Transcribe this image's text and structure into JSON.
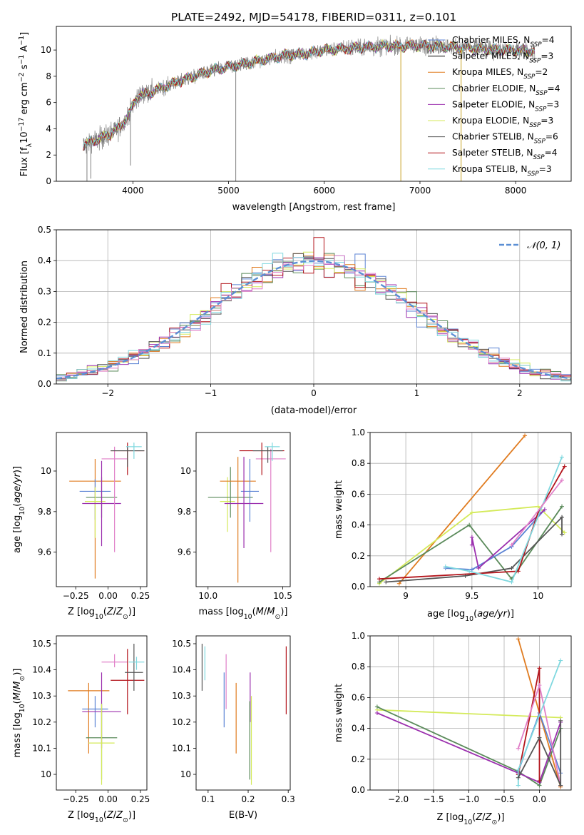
{
  "title": "PLATE=2492, MJD=54178, FIBERID=0311, z=0.101",
  "colors": {
    "chabrier_miles": "#5b83d4",
    "salpeter_miles": "#000000",
    "kroupa_miles": "#e07b1f",
    "chabrier_elodie": "#5a8a5a",
    "salpeter_elodie": "#9b2fae",
    "kroupa_elodie": "#d4ea5a",
    "chabrier_stelib": "#555555",
    "salpeter_stelib": "#b3151c",
    "kroupa_stelib": "#7fd8df",
    "normal_curve": "#5b8fd4",
    "grid": "#b0b0b0",
    "pink": "#e07fc8"
  },
  "chart_data": [
    {
      "id": "spectrum",
      "type": "line",
      "xlabel": "wavelength [Angstrom, rest frame]",
      "ylabel": "Flux [f_λ10^-17 erg cm^-2 s^-1 A^-1]",
      "xlim": [
        3200,
        8580
      ],
      "ylim": [
        0,
        11.8
      ],
      "xticks": [
        4000,
        5000,
        6000,
        7000,
        8000
      ],
      "yticks": [
        0,
        2,
        4,
        6,
        8,
        10
      ],
      "grid": false,
      "legend_position": "top-right",
      "legend": [
        {
          "label": "Chabrier MILES, N_SSP=4",
          "color_key": "chabrier_miles"
        },
        {
          "label": "Salpeter MILES, N_SSP=3",
          "color_key": "salpeter_miles"
        },
        {
          "label": "Kroupa MILES, N_SSP=2",
          "color_key": "kroupa_miles"
        },
        {
          "label": "Chabrier ELODIE, N_SSP=4",
          "color_key": "chabrier_elodie"
        },
        {
          "label": "Salpeter ELODIE, N_SSP=3",
          "color_key": "salpeter_elodie"
        },
        {
          "label": "Kroupa ELODIE, N_SSP=3",
          "color_key": "kroupa_elodie"
        },
        {
          "label": "Chabrier STELIB, N_SSP=6",
          "color_key": "chabrier_stelib"
        },
        {
          "label": "Salpeter STELIB, N_SSP=4",
          "color_key": "salpeter_stelib"
        },
        {
          "label": "Kroupa STELIB, N_SSP=3",
          "color_key": "kroupa_stelib"
        }
      ],
      "continuum": {
        "x": [
          3470,
          3700,
          3850,
          3950,
          4050,
          4200,
          4400,
          4600,
          4800,
          5000,
          5200,
          5400,
          5600,
          5800,
          6000,
          6200,
          6400,
          6600,
          6800,
          7000,
          7200,
          7400,
          7600,
          7800,
          8000,
          8200
        ],
        "y": [
          2.7,
          3.4,
          4.0,
          5.0,
          6.5,
          6.8,
          7.4,
          7.9,
          8.4,
          8.7,
          9.0,
          9.3,
          9.6,
          9.7,
          10.0,
          10.1,
          10.2,
          10.3,
          10.3,
          10.35,
          10.3,
          10.2,
          10.1,
          10.0,
          10.0,
          9.9
        ]
      }
    },
    {
      "id": "residuals",
      "type": "histogram",
      "xlabel": "(data-model)/error",
      "ylabel": "Normed distribution",
      "xlim": [
        -2.5,
        2.5
      ],
      "ylim": [
        0,
        0.5
      ],
      "xticks": [
        -2,
        -1,
        0,
        1,
        2
      ],
      "xtick_labels": [
        "−2",
        "−1",
        "0",
        "1",
        "2"
      ],
      "yticks": [
        0.0,
        0.1,
        0.2,
        0.3,
        0.4,
        0.5
      ],
      "ytick_labels": [
        "0.0",
        "0.1",
        "0.2",
        "0.3",
        "0.4",
        "0.5"
      ],
      "grid": true,
      "bin_width": 0.1,
      "legend": [
        {
          "label": "𝒩(0, 1)",
          "color_key": "normal_curve"
        }
      ]
    },
    {
      "id": "age_vs_Z",
      "type": "errorbar",
      "xlabel": "Z [log10(Z/Z⊙)]",
      "ylabel": "age [log10(age/yr)]",
      "xlim": [
        -0.4,
        0.3
      ],
      "ylim": [
        9.43,
        10.19
      ],
      "xticks": [
        -0.25,
        0.0,
        0.25
      ],
      "xtick_labels": [
        "−0.25",
        "0.00",
        "0.25"
      ],
      "yticks": [
        9.6,
        9.8,
        10.0
      ],
      "points": [
        {
          "color_key": "kroupa_miles",
          "x": -0.1,
          "xerr": 0.2,
          "y": 9.95,
          "yerr": [
            0.48,
            0.11
          ]
        },
        {
          "color_key": "chabrier_miles",
          "x": -0.1,
          "xerr": 0.12,
          "y": 9.9,
          "yerr": [
            0.14,
            0.06
          ]
        },
        {
          "color_key": "chabrier_elodie",
          "x": -0.05,
          "xerr": 0.12,
          "y": 9.87,
          "yerr": [
            0.1,
            0.1
          ]
        },
        {
          "color_key": "kroupa_elodie",
          "x": -0.1,
          "xerr": 0.08,
          "y": 9.85,
          "yerr": [
            0.18,
            0.07
          ]
        },
        {
          "color_key": "salpeter_elodie",
          "x": -0.05,
          "xerr": 0.15,
          "y": 9.84,
          "yerr": [
            0.21,
            0.21
          ]
        },
        {
          "color_key": "pink",
          "x": 0.05,
          "xerr": 0.1,
          "y": 10.06,
          "yerr": [
            0.46,
            0.06
          ]
        },
        {
          "color_key": "salpeter_stelib",
          "x": 0.15,
          "xerr": 0.13,
          "y": 10.1,
          "yerr": [
            0.12,
            0.04
          ]
        },
        {
          "color_key": "chabrier_stelib",
          "x": 0.15,
          "xerr": 0.13,
          "y": 10.1,
          "yerr": [
            0.08,
            0.02
          ]
        },
        {
          "color_key": "kroupa_stelib",
          "x": 0.2,
          "xerr": 0.06,
          "y": 10.12,
          "yerr": [
            0.06,
            0.02
          ]
        }
      ]
    },
    {
      "id": "age_vs_mass",
      "type": "errorbar",
      "xlabel": "mass [log10(M/M⊙)]",
      "ylabel": "",
      "xlim": [
        9.92,
        10.55
      ],
      "ylim": [
        9.43,
        10.19
      ],
      "xticks": [
        10.0,
        10.5
      ],
      "xtick_labels": [
        "10.0",
        "10.5"
      ],
      "yticks": [
        9.6,
        9.8,
        10.0
      ],
      "points": [
        {
          "color_key": "kroupa_elodie",
          "x": 10.13,
          "xerr": 0.05,
          "y": 9.85,
          "yerr": [
            0.15,
            0.12
          ]
        },
        {
          "color_key": "chabrier_elodie",
          "x": 10.15,
          "xerr": 0.15,
          "y": 9.87,
          "yerr": [
            0.1,
            0.15
          ]
        },
        {
          "color_key": "kroupa_miles",
          "x": 10.2,
          "xerr": 0.12,
          "y": 9.95,
          "yerr": [
            0.5,
            0.12
          ]
        },
        {
          "color_key": "chabrier_miles",
          "x": 10.28,
          "xerr": 0.06,
          "y": 9.9,
          "yerr": [
            0.15,
            0.16
          ]
        },
        {
          "color_key": "salpeter_elodie",
          "x": 10.24,
          "xerr": 0.13,
          "y": 9.84,
          "yerr": [
            0.22,
            0.23
          ]
        },
        {
          "color_key": "pink",
          "x": 10.42,
          "xerr": 0.1,
          "y": 10.06,
          "yerr": [
            0.46,
            0.05
          ]
        },
        {
          "color_key": "salpeter_stelib",
          "x": 10.36,
          "xerr": 0.15,
          "y": 10.1,
          "yerr": [
            0.12,
            0.04
          ]
        },
        {
          "color_key": "chabrier_stelib",
          "x": 10.4,
          "xerr": 0.1,
          "y": 10.1,
          "yerr": [
            0.06,
            0.02
          ]
        },
        {
          "color_key": "kroupa_stelib",
          "x": 10.43,
          "xerr": 0.05,
          "y": 10.12,
          "yerr": [
            0.07,
            0.02
          ]
        }
      ]
    },
    {
      "id": "massweight_vs_age",
      "type": "line",
      "xlabel": "age [log10(age/yr)]",
      "ylabel": "mass weight",
      "xlim": [
        8.73,
        10.25
      ],
      "ylim": [
        0,
        1.0
      ],
      "xticks": [
        9.0,
        9.5,
        10.0
      ],
      "yticks": [
        0.0,
        0.2,
        0.4,
        0.6,
        0.8,
        1.0
      ],
      "grid": true,
      "series": [
        {
          "color_key": "kroupa_miles",
          "x": [
            8.95,
            9.9
          ],
          "y": [
            0.02,
            0.98
          ]
        },
        {
          "color_key": "kroupa_elodie",
          "x": [
            8.8,
            9.5,
            10.0,
            10.2
          ],
          "y": [
            0.02,
            0.48,
            0.52,
            0.35
          ]
        },
        {
          "color_key": "chabrier_elodie",
          "x": [
            8.8,
            9.48,
            9.8,
            10.18
          ],
          "y": [
            0.03,
            0.4,
            0.05,
            0.52
          ]
        },
        {
          "color_key": "chabrier_stelib",
          "x": [
            8.85,
            9.45,
            9.8,
            10.18,
            10.18
          ],
          "y": [
            0.03,
            0.07,
            0.12,
            0.45,
            0.34
          ]
        },
        {
          "color_key": "chabrier_miles",
          "x": [
            9.3,
            9.5,
            9.8,
            10.05
          ],
          "y": [
            0.12,
            0.11,
            0.26,
            0.5
          ]
        },
        {
          "color_key": "salpeter_elodie",
          "x": [
            9.5,
            9.5,
            9.55,
            10.05
          ],
          "y": [
            0.27,
            0.32,
            0.12,
            0.5
          ]
        },
        {
          "color_key": "salpeter_stelib",
          "x": [
            8.8,
            9.85,
            10.0,
            10.2
          ],
          "y": [
            0.05,
            0.1,
            0.48,
            0.78
          ]
        },
        {
          "color_key": "kroupa_stelib",
          "x": [
            9.3,
            9.48,
            9.8,
            10.18
          ],
          "y": [
            0.13,
            0.1,
            0.03,
            0.84
          ]
        },
        {
          "color_key": "pink",
          "x": [
            9.8,
            10.18
          ],
          "y": [
            0.27,
            0.69
          ]
        }
      ]
    },
    {
      "id": "mass_vs_Z",
      "type": "errorbar",
      "xlabel": "Z [log10(Z/Z⊙)]",
      "ylabel": "mass [log10(M/M⊙)]",
      "xlim": [
        -0.4,
        0.3
      ],
      "ylim": [
        9.94,
        10.53
      ],
      "xticks": [
        -0.25,
        0.0,
        0.25
      ],
      "xtick_labels": [
        "−0.25",
        "0.00",
        "0.25"
      ],
      "yticks": [
        10.0,
        10.1,
        10.2,
        10.3,
        10.4,
        10.5
      ],
      "points": [
        {
          "color_key": "kroupa_miles",
          "x": -0.15,
          "xerr": 0.16,
          "y": 10.32,
          "yerr": [
            0.24,
            0.03
          ]
        },
        {
          "color_key": "chabrier_miles",
          "x": -0.1,
          "xerr": 0.1,
          "y": 10.25,
          "yerr": [
            0.07,
            0.05
          ]
        },
        {
          "color_key": "salpeter_elodie",
          "x": -0.05,
          "xerr": 0.15,
          "y": 10.24,
          "yerr": [
            0.14,
            0.15
          ]
        },
        {
          "color_key": "chabrier_elodie",
          "x": -0.05,
          "xerr": 0.12,
          "y": 10.14,
          "yerr": [
            0.16,
            0.13
          ]
        },
        {
          "color_key": "kroupa_elodie",
          "x": -0.05,
          "xerr": 0.1,
          "y": 10.12,
          "yerr": [
            0.16,
            0.15
          ]
        },
        {
          "color_key": "pink",
          "x": 0.05,
          "xerr": 0.1,
          "y": 10.43,
          "yerr": [
            0.02,
            0.03
          ]
        },
        {
          "color_key": "salpeter_stelib",
          "x": 0.15,
          "xerr": 0.13,
          "y": 10.36,
          "yerr": [
            0.13,
            0.12
          ]
        },
        {
          "color_key": "chabrier_stelib",
          "x": 0.2,
          "xerr": 0.07,
          "y": 10.39,
          "yerr": [
            0.07,
            0.11
          ]
        },
        {
          "color_key": "kroupa_stelib",
          "x": 0.22,
          "xerr": 0.06,
          "y": 10.43,
          "yerr": [
            0.03,
            0.02
          ]
        }
      ]
    },
    {
      "id": "mass_vs_ebv",
      "type": "errorbar",
      "xlabel": "E(B-V)",
      "ylabel": "",
      "xlim": [
        0.07,
        0.305
      ],
      "ylim": [
        9.94,
        10.53
      ],
      "xticks": [
        0.1,
        0.2,
        0.3
      ],
      "xtick_labels": [
        "0.1",
        "0.2",
        "0.3"
      ],
      "yticks": [
        10.0,
        10.1,
        10.2,
        10.3,
        10.4,
        10.5
      ],
      "points": [
        {
          "color_key": "chabrier_stelib",
          "x": 0.085,
          "xerr": 0,
          "y": 10.41,
          "yerr": [
            0.09,
            0.09
          ]
        },
        {
          "color_key": "kroupa_stelib",
          "x": 0.092,
          "xerr": 0,
          "y": 10.43,
          "yerr": [
            0.07,
            0.06
          ]
        },
        {
          "color_key": "chabrier_miles",
          "x": 0.14,
          "xerr": 0,
          "y": 10.29,
          "yerr": [
            0.11,
            0.1
          ]
        },
        {
          "color_key": "pink",
          "x": 0.145,
          "xerr": 0,
          "y": 10.36,
          "yerr": [
            0.11,
            0.1
          ]
        },
        {
          "color_key": "kroupa_miles",
          "x": 0.17,
          "xerr": 0,
          "y": 10.24,
          "yerr": [
            0.16,
            0.11
          ]
        },
        {
          "color_key": "salpeter_elodie",
          "x": 0.205,
          "xerr": 0,
          "y": 10.3,
          "yerr": [
            0.1,
            0.09
          ]
        },
        {
          "color_key": "kroupa_elodie",
          "x": 0.208,
          "xerr": 0,
          "y": 10.18,
          "yerr": [
            0.22,
            0.12
          ]
        },
        {
          "color_key": "chabrier_elodie",
          "x": 0.204,
          "xerr": 0,
          "y": 10.1,
          "yerr": [
            0.12,
            0.18
          ]
        },
        {
          "color_key": "salpeter_stelib",
          "x": 0.295,
          "xerr": 0,
          "y": 10.36,
          "yerr": [
            0.13,
            0.13
          ]
        }
      ]
    },
    {
      "id": "massweight_vs_Z",
      "type": "line",
      "xlabel": "Z [log10(Z/Z⊙)]",
      "ylabel": "mass weight",
      "xlim": [
        -2.4,
        0.45
      ],
      "ylim": [
        0,
        1.0
      ],
      "xticks": [
        -2.0,
        -1.5,
        -1.0,
        -0.5,
        0.0
      ],
      "xtick_labels": [
        "−2.0",
        "−1.5",
        "−1.0",
        "−0.5",
        "0.0"
      ],
      "yticks": [
        0.0,
        0.2,
        0.4,
        0.6,
        0.8,
        1.0
      ],
      "grid": true,
      "series": [
        {
          "color_key": "kroupa_miles",
          "x": [
            -0.3,
            0.3
          ],
          "y": [
            0.98,
            0.02
          ]
        },
        {
          "color_key": "kroupa_elodie",
          "x": [
            -2.3,
            0.3
          ],
          "y": [
            0.52,
            0.47
          ]
        },
        {
          "color_key": "chabrier_elodie",
          "x": [
            -2.3,
            -0.3,
            0.0,
            0.3
          ],
          "y": [
            0.54,
            0.12,
            0.03,
            0.4
          ]
        },
        {
          "color_key": "salpeter_elodie",
          "x": [
            -2.3,
            -0.3,
            0.0,
            0.3
          ],
          "y": [
            0.5,
            0.11,
            0.05,
            0.44
          ]
        },
        {
          "color_key": "chabrier_miles",
          "x": [
            -0.3,
            0.0,
            0.3
          ],
          "y": [
            0.12,
            0.5,
            0.11
          ]
        },
        {
          "color_key": "salpeter_stelib",
          "x": [
            -0.3,
            0.0,
            0.0
          ],
          "y": [
            0.1,
            0.79,
            0.06
          ]
        },
        {
          "color_key": "pink",
          "x": [
            -0.3,
            0.0,
            0.3
          ],
          "y": [
            0.27,
            0.68,
            0.03
          ]
        },
        {
          "color_key": "kroupa_stelib",
          "x": [
            -0.3,
            -0.3,
            0.3
          ],
          "y": [
            0.03,
            0.13,
            0.84
          ]
        },
        {
          "color_key": "chabrier_stelib",
          "x": [
            -0.3,
            0.0,
            0.3,
            0.3
          ],
          "y": [
            0.08,
            0.34,
            0.03,
            0.45
          ]
        }
      ]
    }
  ]
}
